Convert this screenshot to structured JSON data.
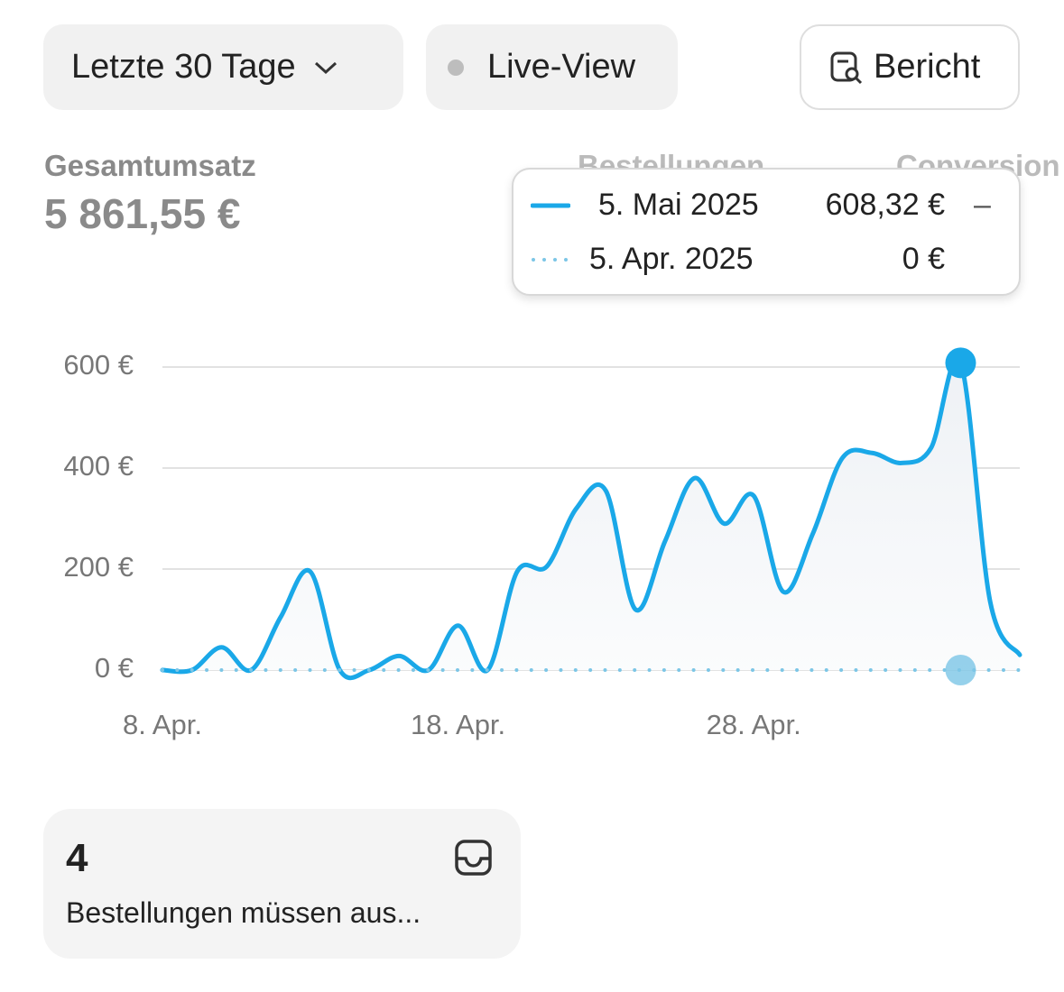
{
  "toolbar": {
    "range": "Letzte 30 Tage",
    "live": "Live-View",
    "report": "Bericht"
  },
  "metrics": [
    {
      "label": "Gesamtumsatz",
      "value": "5 861,55 €"
    },
    {
      "label": "Bestellungen"
    },
    {
      "label": "Conversion"
    }
  ],
  "chart_data": {
    "type": "line",
    "categories": [
      "8. Apr.",
      null,
      null,
      null,
      null,
      null,
      null,
      null,
      null,
      null,
      "18. Apr.",
      null,
      null,
      null,
      null,
      null,
      null,
      null,
      null,
      null,
      "28. Apr.",
      null,
      null,
      null,
      null,
      null,
      null,
      null,
      null,
      null
    ],
    "series": [
      {
        "name": "5. Mai 2025",
        "color": "#1aa8e8",
        "style": "solid",
        "values": [
          0,
          0,
          45,
          0,
          105,
          195,
          0,
          0,
          28,
          0,
          88,
          0,
          195,
          205,
          320,
          355,
          120,
          255,
          380,
          290,
          345,
          155,
          270,
          420,
          430,
          410,
          440,
          608.32,
          135,
          30
        ],
        "value_labels": [
          null,
          null,
          null,
          null,
          null,
          null,
          null,
          null,
          null,
          null,
          null,
          null,
          null,
          null,
          null,
          null,
          null,
          null,
          null,
          null,
          null,
          null,
          null,
          null,
          null,
          null,
          null,
          "608,32 €",
          null,
          null
        ]
      },
      {
        "name": "5. Apr. 2025",
        "color": "#7cc6e6",
        "style": "dotted",
        "values": [
          0,
          0,
          0,
          0,
          0,
          0,
          0,
          0,
          0,
          0,
          0,
          0,
          0,
          0,
          0,
          0,
          0,
          0,
          0,
          0,
          0,
          0,
          0,
          0,
          0,
          0,
          0,
          0,
          0,
          0
        ],
        "value_labels": [
          null,
          null,
          null,
          null,
          null,
          null,
          null,
          null,
          null,
          null,
          null,
          null,
          null,
          null,
          null,
          null,
          null,
          null,
          null,
          null,
          null,
          null,
          null,
          null,
          null,
          null,
          null,
          "0 €",
          null,
          null
        ]
      }
    ],
    "ylim": [
      0,
      600
    ],
    "yticks": [
      {
        "value": 0,
        "label": "0 €"
      },
      {
        "value": 200,
        "label": "200 €"
      },
      {
        "value": 400,
        "label": "400 €"
      },
      {
        "value": 600,
        "label": "600 €"
      }
    ],
    "grid": true,
    "tooltip": {
      "index": 27,
      "change": "–"
    }
  },
  "card": {
    "count": "4",
    "text": "Bestellungen müssen aus..."
  }
}
